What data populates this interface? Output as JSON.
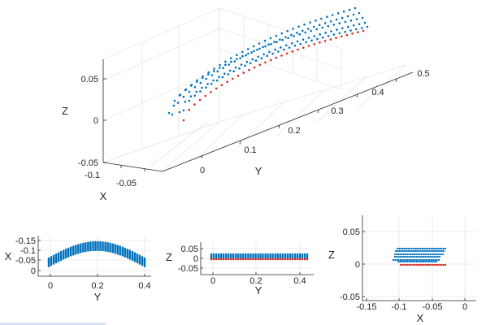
{
  "chart_data": [
    {
      "type": "scatter3d",
      "view": "3d",
      "xlabel": "X",
      "ylabel": "Y",
      "zlabel": "Z",
      "xticks": [
        "-0.1",
        "-0.05"
      ],
      "yticks": [
        "0",
        "0.1",
        "0.2",
        "0.3",
        "0.4",
        "0.5"
      ],
      "zticks": [
        "0.05",
        "0",
        "-0.05"
      ],
      "xlim": [
        -0.1,
        -0.04
      ],
      "ylim": [
        -0.05,
        0.5
      ],
      "zlim": [
        -0.05,
        0.06
      ],
      "grid": true,
      "series": [
        {
          "color": "#0072bd",
          "desc": "curved tube surface points, 6 layers, y 0 to 0.45"
        },
        {
          "color": "#d42a1e",
          "desc": "bottom edge points"
        }
      ]
    },
    {
      "type": "scatter",
      "view": "top (Y vs X)",
      "xlabel": "Y",
      "ylabel": "X",
      "xticks": [
        "0",
        "0.2",
        "0.4"
      ],
      "yticks": [
        "-0.15",
        "-0.1",
        "-0.05",
        "0"
      ],
      "xlim": [
        -0.05,
        0.48
      ],
      "ylim": [
        -0.16,
        0.01
      ],
      "grid": true
    },
    {
      "type": "scatter",
      "view": "side (Y vs Z)",
      "xlabel": "Y",
      "ylabel": "Z",
      "xticks": [
        "0",
        "0.2",
        "0.4"
      ],
      "yticks": [
        "0.05",
        "0",
        "-0.05"
      ],
      "xlim": [
        -0.05,
        0.48
      ],
      "ylim": [
        -0.06,
        0.06
      ],
      "grid": true
    },
    {
      "type": "scatter",
      "view": "front (X vs Z)",
      "xlabel": "X",
      "ylabel": "Z",
      "xticks": [
        "-0.15",
        "-0.1",
        "-0.05",
        "0"
      ],
      "yticks": [
        "0.05",
        "0",
        "-0.05"
      ],
      "xlim": [
        -0.16,
        0.01
      ],
      "ylim": [
        -0.05,
        0.06
      ],
      "grid": true
    }
  ],
  "colors": {
    "blue": "#0072bd",
    "red": "#d42a1e",
    "grid": "#e6e6e6",
    "axis": "#262626"
  }
}
